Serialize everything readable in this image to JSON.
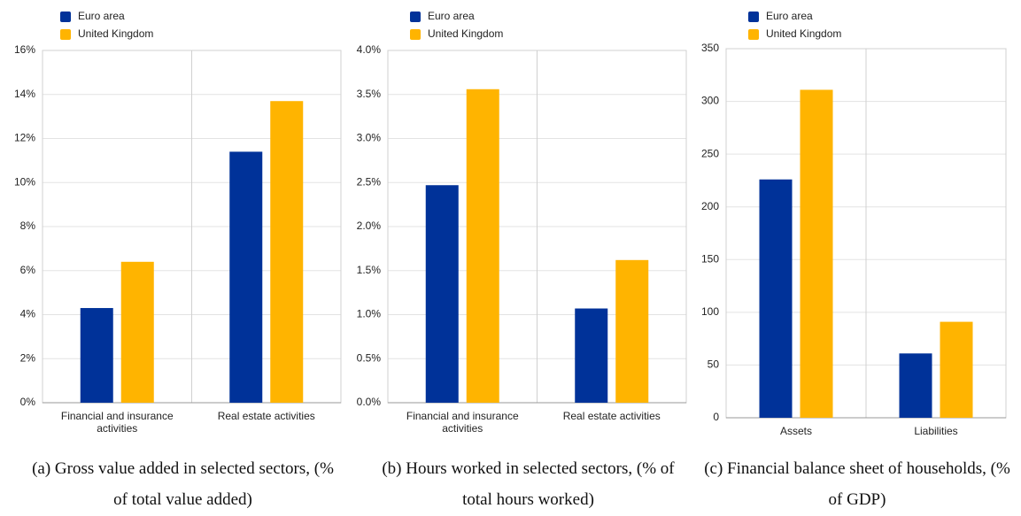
{
  "chart_data": [
    {
      "type": "bar",
      "caption": "(a) Gross value added in selected sectors, (% of total value added)",
      "categories": [
        "Financial and insurance activities",
        "Real estate activities"
      ],
      "series": [
        {
          "name": "Euro area",
          "color": "#003299",
          "values": [
            4.3,
            11.4
          ]
        },
        {
          "name": "United Kingdom",
          "color": "#ffb400",
          "values": [
            6.4,
            13.7
          ]
        }
      ],
      "ylim": [
        0,
        16
      ],
      "yticks": [
        {
          "value": 0,
          "label": "0%"
        },
        {
          "value": 2,
          "label": "2%"
        },
        {
          "value": 4,
          "label": "4%"
        },
        {
          "value": 6,
          "label": "6%"
        },
        {
          "value": 8,
          "label": "8%"
        },
        {
          "value": 10,
          "label": "10%"
        },
        {
          "value": 12,
          "label": "12%"
        },
        {
          "value": 14,
          "label": "14%"
        },
        {
          "value": 16,
          "label": "16%"
        }
      ],
      "grid": true
    },
    {
      "type": "bar",
      "caption": "(b) Hours worked in selected sectors, (% of total hours worked)",
      "categories": [
        "Financial and insurance activities",
        "Real estate activities"
      ],
      "series": [
        {
          "name": "Euro area",
          "color": "#003299",
          "values": [
            2.47,
            1.07
          ]
        },
        {
          "name": "United Kingdom",
          "color": "#ffb400",
          "values": [
            3.56,
            1.62
          ]
        }
      ],
      "ylim": [
        0,
        4
      ],
      "yticks": [
        {
          "value": 0,
          "label": "0.0%"
        },
        {
          "value": 0.5,
          "label": "0.5%"
        },
        {
          "value": 1,
          "label": "1.0%"
        },
        {
          "value": 1.5,
          "label": "1.5%"
        },
        {
          "value": 2,
          "label": "2.0%"
        },
        {
          "value": 2.5,
          "label": "2.5%"
        },
        {
          "value": 3,
          "label": "3.0%"
        },
        {
          "value": 3.5,
          "label": "3.5%"
        },
        {
          "value": 4,
          "label": "4.0%"
        }
      ],
      "grid": true
    },
    {
      "type": "bar",
      "caption": "(c) Financial balance sheet of households, (% of GDP)",
      "categories": [
        "Assets",
        "Liabilities"
      ],
      "series": [
        {
          "name": "Euro area",
          "color": "#003299",
          "values": [
            226,
            61
          ]
        },
        {
          "name": "United Kingdom",
          "color": "#ffb400",
          "values": [
            311,
            91
          ]
        }
      ],
      "ylim": [
        0,
        350
      ],
      "yticks": [
        0,
        50,
        100,
        150,
        200,
        250,
        300,
        350
      ],
      "grid": true
    }
  ]
}
